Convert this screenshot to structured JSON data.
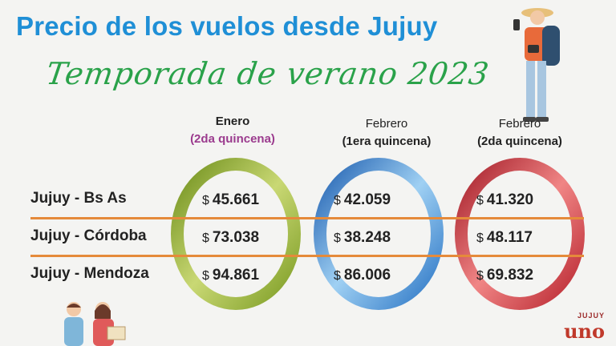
{
  "title": "Precio de los vuelos desde Jujuy",
  "subtitle": "Temporada de verano 2023",
  "columns": [
    {
      "month": "Enero",
      "period": "(2da quincena)"
    },
    {
      "month": "Febrero",
      "period": "(1era quincena)"
    },
    {
      "month": "Febrero",
      "period": "(2da quincena)"
    }
  ],
  "rows": [
    {
      "route": "Jujuy - Bs As",
      "prices": [
        "45.661",
        "42.059",
        "41.320"
      ]
    },
    {
      "route": "Jujuy - Córdoba",
      "prices": [
        "73.038",
        "38.248",
        "48.117"
      ]
    },
    {
      "route": "Jujuy - Mendoza",
      "prices": [
        "94.861",
        "86.006",
        "69.832"
      ]
    }
  ],
  "currency_symbol": "$",
  "ring_colors": [
    "#8fae2c",
    "#2f7fd0",
    "#d23a3a"
  ],
  "brand": {
    "small": "JUJUY",
    "big": "uno"
  }
}
